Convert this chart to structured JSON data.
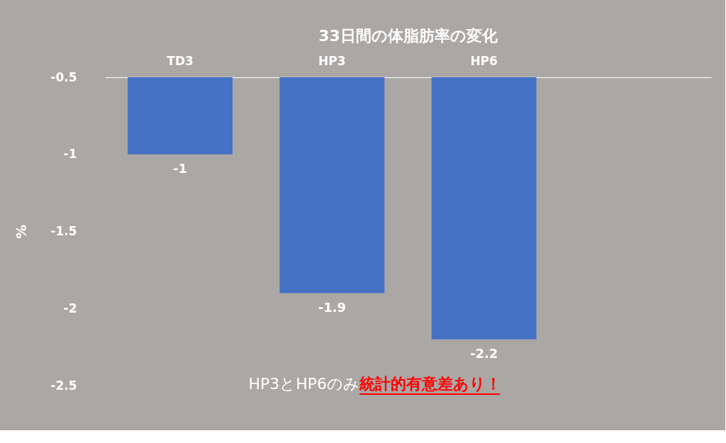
{
  "chart_data": {
    "type": "bar",
    "title": "33日間の体脂肪率の変化",
    "ylabel": "%",
    "categories": [
      "TD3",
      "HP3",
      "HP6",
      null
    ],
    "series": [
      {
        "color": "#4472c4",
        "values": [
          -1,
          -1.9,
          -2.2,
          null
        ]
      }
    ],
    "ylim": [
      -2.5,
      -0.5
    ],
    "yticks": [
      {
        "value": -2.5,
        "label": "-2.5"
      },
      {
        "value": -2,
        "label": "-2"
      },
      {
        "value": -1.5,
        "label": "-1.5"
      },
      {
        "value": -1,
        "label": "-1"
      },
      {
        "value": -0.5,
        "label": "-0.5"
      }
    ],
    "data_labels": true,
    "grid": false,
    "annotations": [
      "HP3とHP6のみ",
      "統計的有意差あり！"
    ]
  }
}
